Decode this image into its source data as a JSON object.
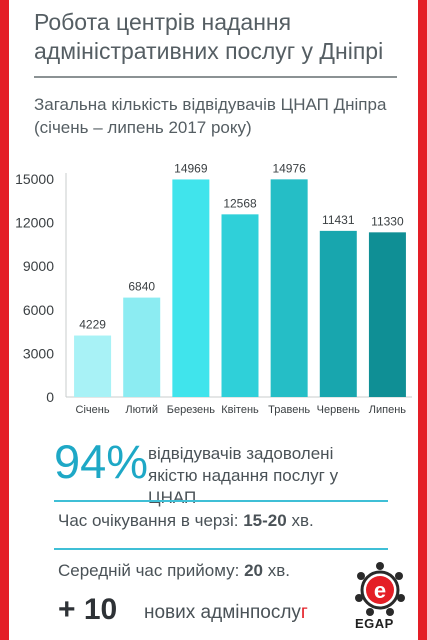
{
  "header": {
    "title_line1": "Робота центрів надання",
    "title_line2": "адміністративних послуг у Дніпрі",
    "subtitle_line1": "Загальна кількість відвідувачів ЦНАП Дніпра",
    "subtitle_line2": "(січень – липень 2017 року)"
  },
  "chart_data": {
    "type": "bar",
    "title": "Загальна кількість відвідувачів ЦНАП Дніпра (січень – липень 2017 року)",
    "categories": [
      "Січень",
      "Лютий",
      "Березень",
      "Квітень",
      "Травень",
      "Червень",
      "Липень"
    ],
    "values": [
      4229,
      6840,
      14969,
      12568,
      14976,
      11431,
      11330
    ],
    "value_labels": [
      "4229",
      "6840",
      "14969",
      "12568",
      "14976",
      "11431",
      "11330"
    ],
    "yticks": [
      "0",
      "3000",
      "6000",
      "9000",
      "12000",
      "15000"
    ],
    "ylim": [
      0,
      15000
    ],
    "bar_colors": [
      "#a8f2f6",
      "#8cecf2",
      "#40e4ec",
      "#2fd0d9",
      "#25bec6",
      "#18a6ae",
      "#0f8f95"
    ],
    "grid": false
  },
  "stats": {
    "satisfaction_percent": "94%",
    "satisfaction_line1": "відвідувачів задоволені",
    "satisfaction_line2": "якістю надання послуг у ЦНАП",
    "wait_label": "Час очікування в черзі:",
    "wait_value": "15-20",
    "wait_unit": "хв.",
    "reception_label": "Середній час прийому:",
    "reception_value": "20",
    "reception_unit": "хв.",
    "new_services_count": "+ 10",
    "new_services_text": "нових адмінпослу",
    "new_services_last": "г"
  },
  "logo": {
    "text": "EGAP",
    "letter": "e"
  }
}
